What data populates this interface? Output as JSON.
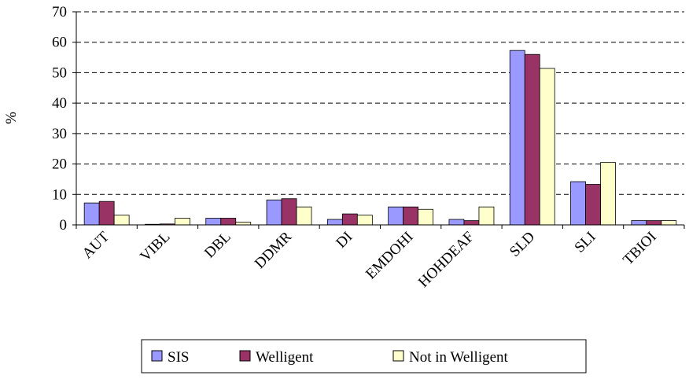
{
  "chart_data": {
    "type": "bar",
    "y_label": "%",
    "categories": [
      "AUT",
      "VIBL",
      "DBL",
      "DDMR",
      "DI",
      "EMDOHI",
      "HOHDEAF",
      "SLD",
      "SLI",
      "TBIOI"
    ],
    "series": [
      {
        "name": "SIS",
        "color": "#9999ff",
        "values": [
          7.2,
          0.2,
          2.2,
          8.2,
          1.8,
          5.9,
          1.8,
          57.3,
          14.2,
          1.4
        ]
      },
      {
        "name": "Welligent",
        "color": "#993366",
        "values": [
          7.7,
          0.3,
          2.2,
          8.6,
          3.6,
          5.9,
          1.4,
          56.0,
          13.3,
          1.4
        ]
      },
      {
        "name": "Not in Welligent",
        "color": "#ffffcc",
        "values": [
          3.2,
          2.2,
          0.9,
          5.9,
          3.2,
          5.1,
          5.9,
          51.4,
          20.5,
          1.4
        ]
      }
    ],
    "ylim": [
      0,
      70
    ],
    "yticks": [
      0,
      10,
      20,
      30,
      40,
      50,
      60,
      70
    ],
    "grid": true,
    "legend": "bottom"
  }
}
